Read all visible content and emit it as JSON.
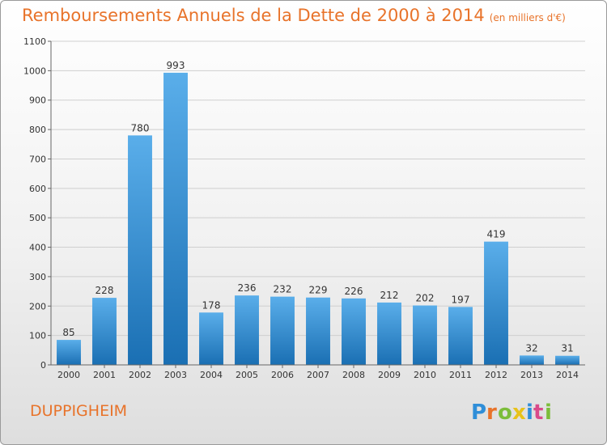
{
  "header": {
    "title": "Remboursements Annuels de la Dette de 2000 à 2014",
    "unit": "(en milliers d'€)"
  },
  "footer": {
    "commune": "DUPPIGHEIM",
    "logo_text": "Proxiti"
  },
  "colors": {
    "title": "#e8732a",
    "bar_top": "#5aaeea",
    "bar_bottom": "#1a6fb3",
    "grid": "#cfcfcf"
  },
  "chart_data": {
    "type": "bar",
    "title": "Remboursements Annuels de la Dette de 2000 à 2014",
    "xlabel": "",
    "ylabel": "",
    "categories": [
      "2000",
      "2001",
      "2002",
      "2003",
      "2004",
      "2005",
      "2006",
      "2007",
      "2008",
      "2009",
      "2010",
      "2011",
      "2012",
      "2013",
      "2014"
    ],
    "values": [
      85,
      228,
      780,
      993,
      178,
      236,
      232,
      229,
      226,
      212,
      202,
      197,
      419,
      32,
      31
    ],
    "ylim": [
      0,
      1100
    ],
    "yticks": [
      0,
      100,
      200,
      300,
      400,
      500,
      600,
      700,
      800,
      900,
      1000,
      1100
    ],
    "grid": true,
    "legend": "none"
  }
}
